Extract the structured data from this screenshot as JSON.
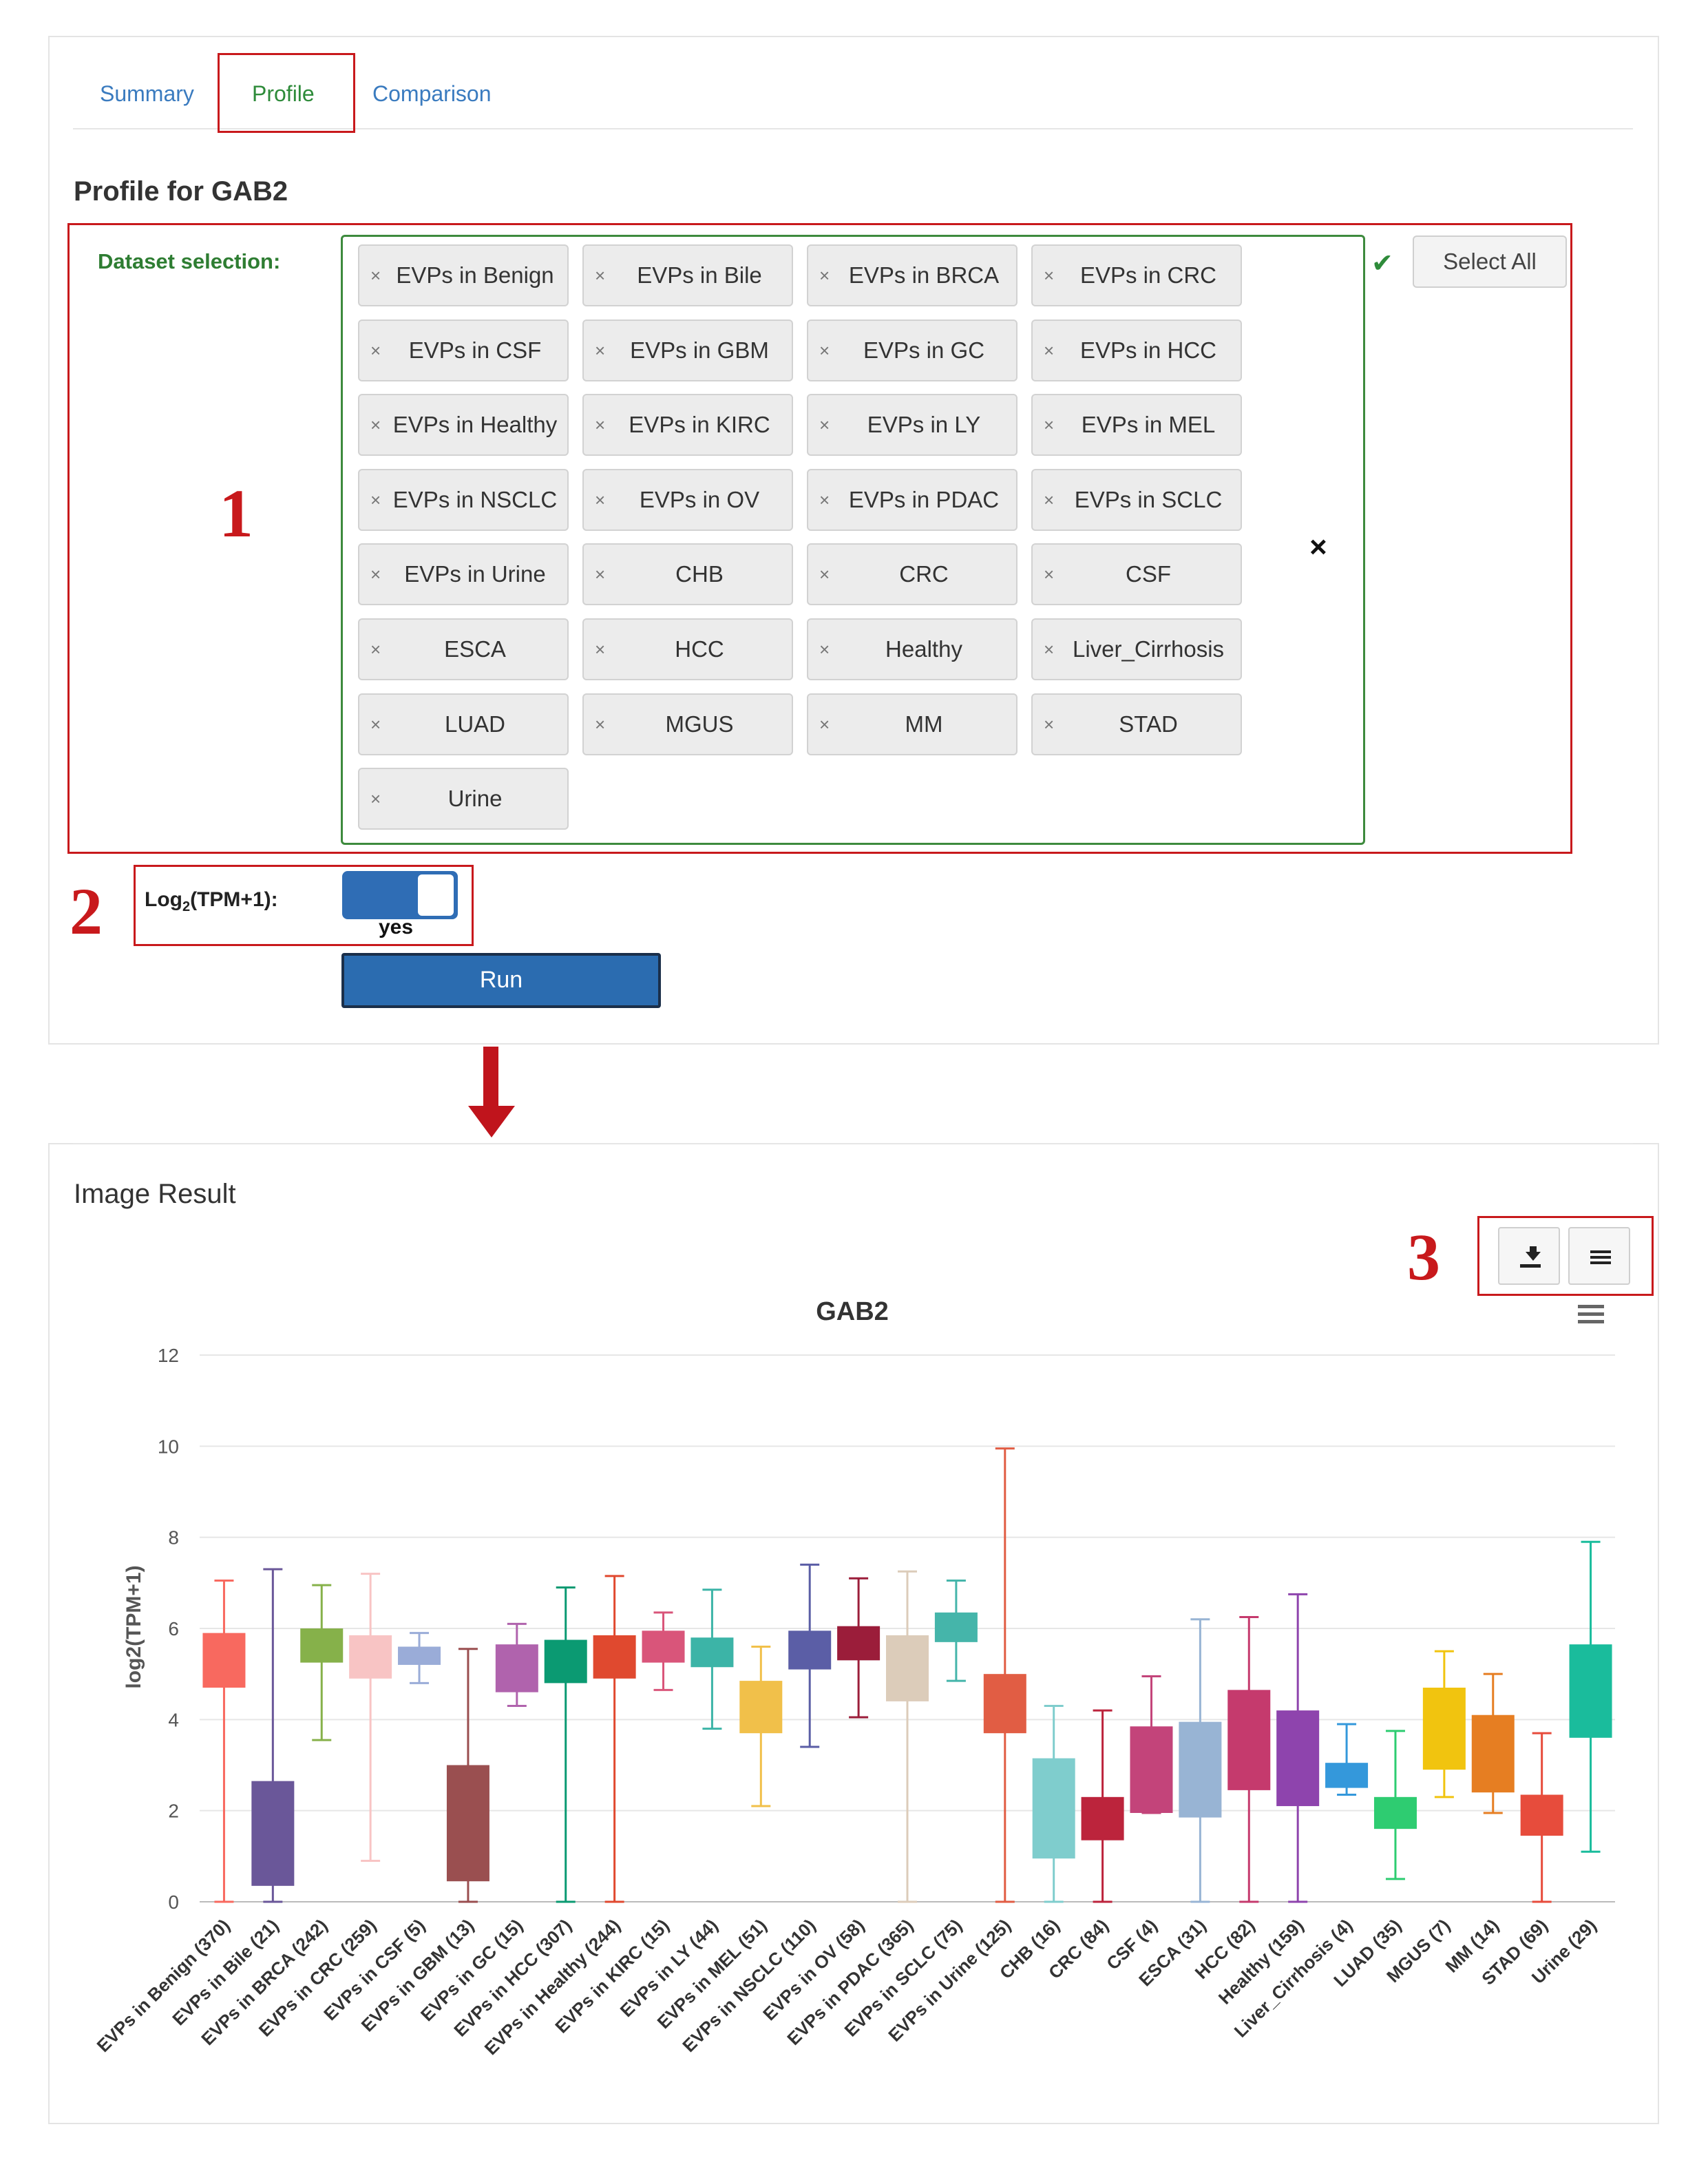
{
  "tabs": [
    {
      "label": "Summary"
    },
    {
      "label": "Profile"
    },
    {
      "label": "Comparison"
    }
  ],
  "page_title": "Profile for GAB2",
  "dataset_selection_label": "Dataset selection:",
  "select_all_label": "Select All",
  "datasets": [
    "EVPs in Benign",
    "EVPs in Bile",
    "EVPs in BRCA",
    "EVPs in CRC",
    "EVPs in CSF",
    "EVPs in GBM",
    "EVPs in GC",
    "EVPs in HCC",
    "EVPs in Healthy",
    "EVPs in KIRC",
    "EVPs in LY",
    "EVPs in MEL",
    "EVPs in NSCLC",
    "EVPs in OV",
    "EVPs in PDAC",
    "EVPs in SCLC",
    "EVPs in Urine",
    "CHB",
    "CRC",
    "CSF",
    "ESCA",
    "HCC",
    "Healthy",
    "Liver_Cirrhosis",
    "LUAD",
    "MGUS",
    "MM",
    "STAD",
    "Urine"
  ],
  "chip_remove_glyph": "×",
  "clear_glyph": "×",
  "check_glyph": "✔",
  "log_label": {
    "prefix": "Log",
    "sub": "2",
    "suffix": "(TPM+1):"
  },
  "toggle_state_label": "yes",
  "toggle_on": true,
  "run_label": "Run",
  "step_labels": {
    "one": "1",
    "two": "2",
    "three": "3"
  },
  "image_result_title": "Image Result",
  "icons": {
    "download": "download-icon",
    "menu": "menu-icon",
    "chart_menu": "hamburger-icon",
    "arrow": "arrow-down-icon",
    "check": "check-icon"
  },
  "colors": {
    "accent_red": "#c8191c",
    "tab_blue": "#3a7bbf",
    "active_green": "#2e8b3a",
    "run_blue": "#2b6cb0"
  },
  "chart_data": {
    "type": "box",
    "title": "GAB2",
    "ylabel": "log2(TPM+1)",
    "ylim": [
      0,
      12
    ],
    "yticks": [
      0,
      2,
      4,
      6,
      8,
      10,
      12
    ],
    "grid": true,
    "categories": [
      "EVPs in Benign (370)",
      "EVPs in Bile (21)",
      "EVPs in BRCA (242)",
      "EVPs in CRC (259)",
      "EVPs in CSF (5)",
      "EVPs in GBM (13)",
      "EVPs in GC (15)",
      "EVPs in HCC (307)",
      "EVPs in Healthy (244)",
      "EVPs in KIRC (15)",
      "EVPs in LY (44)",
      "EVPs in MEL (51)",
      "EVPs in NSCLC (110)",
      "EVPs in OV (58)",
      "EVPs in PDAC (365)",
      "EVPs in SCLC (75)",
      "EVPs in Urine (125)",
      "CHB (16)",
      "CRC (84)",
      "CSF (4)",
      "ESCA (31)",
      "HCC (82)",
      "Healthy (159)",
      "Liver_Cirrhosis (4)",
      "LUAD (35)",
      "MGUS (7)",
      "MM (14)",
      "STAD (69)",
      "Urine (29)"
    ],
    "boxes": [
      {
        "min": 0,
        "q1": 4.7,
        "q3": 5.9,
        "max": 7.05,
        "color": "#f8695f"
      },
      {
        "min": 0,
        "q1": 0.35,
        "q3": 2.65,
        "max": 7.3,
        "color": "#6a5799"
      },
      {
        "min": 3.55,
        "q1": 5.25,
        "q3": 6.0,
        "max": 6.95,
        "color": "#86b14a"
      },
      {
        "min": 0.9,
        "q1": 4.9,
        "q3": 5.85,
        "max": 7.2,
        "color": "#f8c4c4"
      },
      {
        "min": 4.8,
        "q1": 5.2,
        "q3": 5.6,
        "max": 5.9,
        "color": "#9aacd8"
      },
      {
        "min": 0,
        "q1": 0.45,
        "q3": 3.0,
        "max": 5.55,
        "color": "#9a4f50"
      },
      {
        "min": 4.3,
        "q1": 4.6,
        "q3": 5.65,
        "max": 6.1,
        "color": "#b063ad"
      },
      {
        "min": 0,
        "q1": 4.8,
        "q3": 5.75,
        "max": 6.9,
        "color": "#0b9a72"
      },
      {
        "min": 0,
        "q1": 4.9,
        "q3": 5.85,
        "max": 7.15,
        "color": "#e0492f"
      },
      {
        "min": 4.65,
        "q1": 5.25,
        "q3": 5.95,
        "max": 6.35,
        "color": "#d9557a"
      },
      {
        "min": 3.8,
        "q1": 5.15,
        "q3": 5.8,
        "max": 6.85,
        "color": "#3cb4a7"
      },
      {
        "min": 2.1,
        "q1": 3.7,
        "q3": 4.85,
        "max": 5.6,
        "color": "#f1c04a"
      },
      {
        "min": 3.4,
        "q1": 5.1,
        "q3": 5.95,
        "max": 7.4,
        "color": "#5b5ea6"
      },
      {
        "min": 4.05,
        "q1": 5.3,
        "q3": 6.05,
        "max": 7.1,
        "color": "#9b1d3a"
      },
      {
        "min": 0,
        "q1": 4.4,
        "q3": 5.85,
        "max": 7.25,
        "color": "#dcccba"
      },
      {
        "min": 4.85,
        "q1": 5.7,
        "q3": 6.35,
        "max": 7.05,
        "color": "#45b5aa"
      },
      {
        "min": 0,
        "q1": 3.7,
        "q3": 5.0,
        "max": 9.95,
        "color": "#e15d44"
      },
      {
        "min": 0,
        "q1": 0.95,
        "q3": 3.15,
        "max": 4.3,
        "color": "#7fcdcd"
      },
      {
        "min": 0,
        "q1": 1.35,
        "q3": 2.3,
        "max": 4.2,
        "color": "#bc243c"
      },
      {
        "min": 1.95,
        "q1": 1.95,
        "q3": 3.85,
        "max": 4.95,
        "color": "#c3447a"
      },
      {
        "min": 0,
        "q1": 1.85,
        "q3": 3.95,
        "max": 6.2,
        "color": "#98b4d4"
      },
      {
        "min": 0,
        "q1": 2.45,
        "q3": 4.65,
        "max": 6.25,
        "color": "#c53a6d"
      },
      {
        "min": 0,
        "q1": 2.1,
        "q3": 4.2,
        "max": 6.75,
        "color": "#8e44ad"
      },
      {
        "min": 2.35,
        "q1": 2.5,
        "q3": 3.05,
        "max": 3.9,
        "color": "#3498db"
      },
      {
        "min": 0.5,
        "q1": 1.6,
        "q3": 2.3,
        "max": 3.75,
        "color": "#2ecc71"
      },
      {
        "min": 2.3,
        "q1": 2.9,
        "q3": 4.7,
        "max": 5.5,
        "color": "#f1c40f"
      },
      {
        "min": 1.95,
        "q1": 2.4,
        "q3": 4.1,
        "max": 5.0,
        "color": "#e67e22"
      },
      {
        "min": 0,
        "q1": 1.45,
        "q3": 2.35,
        "max": 3.7,
        "color": "#e74c3c"
      },
      {
        "min": 1.1,
        "q1": 3.6,
        "q3": 5.65,
        "max": 7.9,
        "color": "#1abc9c"
      }
    ]
  }
}
